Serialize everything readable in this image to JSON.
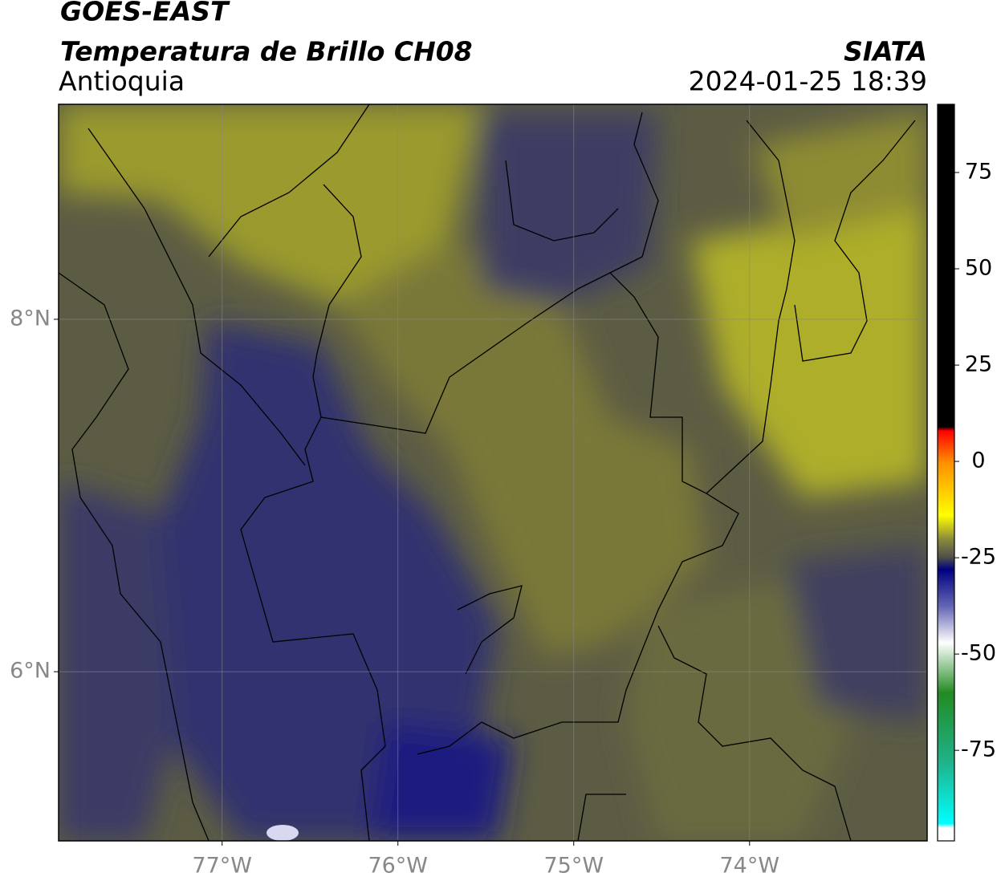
{
  "header": {
    "title": "GOES-EAST",
    "subtitle": "Temperatura de Brillo CH08",
    "region": "Antioquia",
    "source": "SIATA",
    "datetime": "2024-01-25 18:39"
  },
  "chart_data": {
    "type": "map",
    "xlim": [
      -77.93,
      -72.99
    ],
    "ylim": [
      5.04,
      9.22
    ],
    "xticks": [
      {
        "value": -77,
        "label": "77°W"
      },
      {
        "value": -76,
        "label": "76°W"
      },
      {
        "value": -75,
        "label": "75°W"
      },
      {
        "value": -74,
        "label": "74°W"
      }
    ],
    "yticks": [
      {
        "value": 6,
        "label": "6°N"
      },
      {
        "value": 8,
        "label": "8°N"
      }
    ],
    "grid": true,
    "colorbar": {
      "lim": [
        -98.5,
        92.7
      ],
      "ticks": [
        75,
        50,
        25,
        0,
        -25,
        -50,
        -75
      ],
      "stops": [
        {
          "value": 92.7,
          "color": "#000000"
        },
        {
          "value": 9,
          "color": "#000000"
        },
        {
          "value": 8,
          "color": "#ff0000"
        },
        {
          "value": 0,
          "color": "#ff8c00"
        },
        {
          "value": -14,
          "color": "#ffff00"
        },
        {
          "value": -20,
          "color": "#8c8c3c"
        },
        {
          "value": -25,
          "color": "#4c4c4c"
        },
        {
          "value": -28,
          "color": "#000080"
        },
        {
          "value": -38,
          "color": "#6a6ab8"
        },
        {
          "value": -47,
          "color": "#ffffff"
        },
        {
          "value": -60,
          "color": "#228b22"
        },
        {
          "value": -78,
          "color": "#20b28a"
        },
        {
          "value": -94,
          "color": "#00ffff"
        },
        {
          "value": -95,
          "color": "#ffffff"
        },
        {
          "value": -98.5,
          "color": "#ffffff"
        }
      ]
    }
  }
}
